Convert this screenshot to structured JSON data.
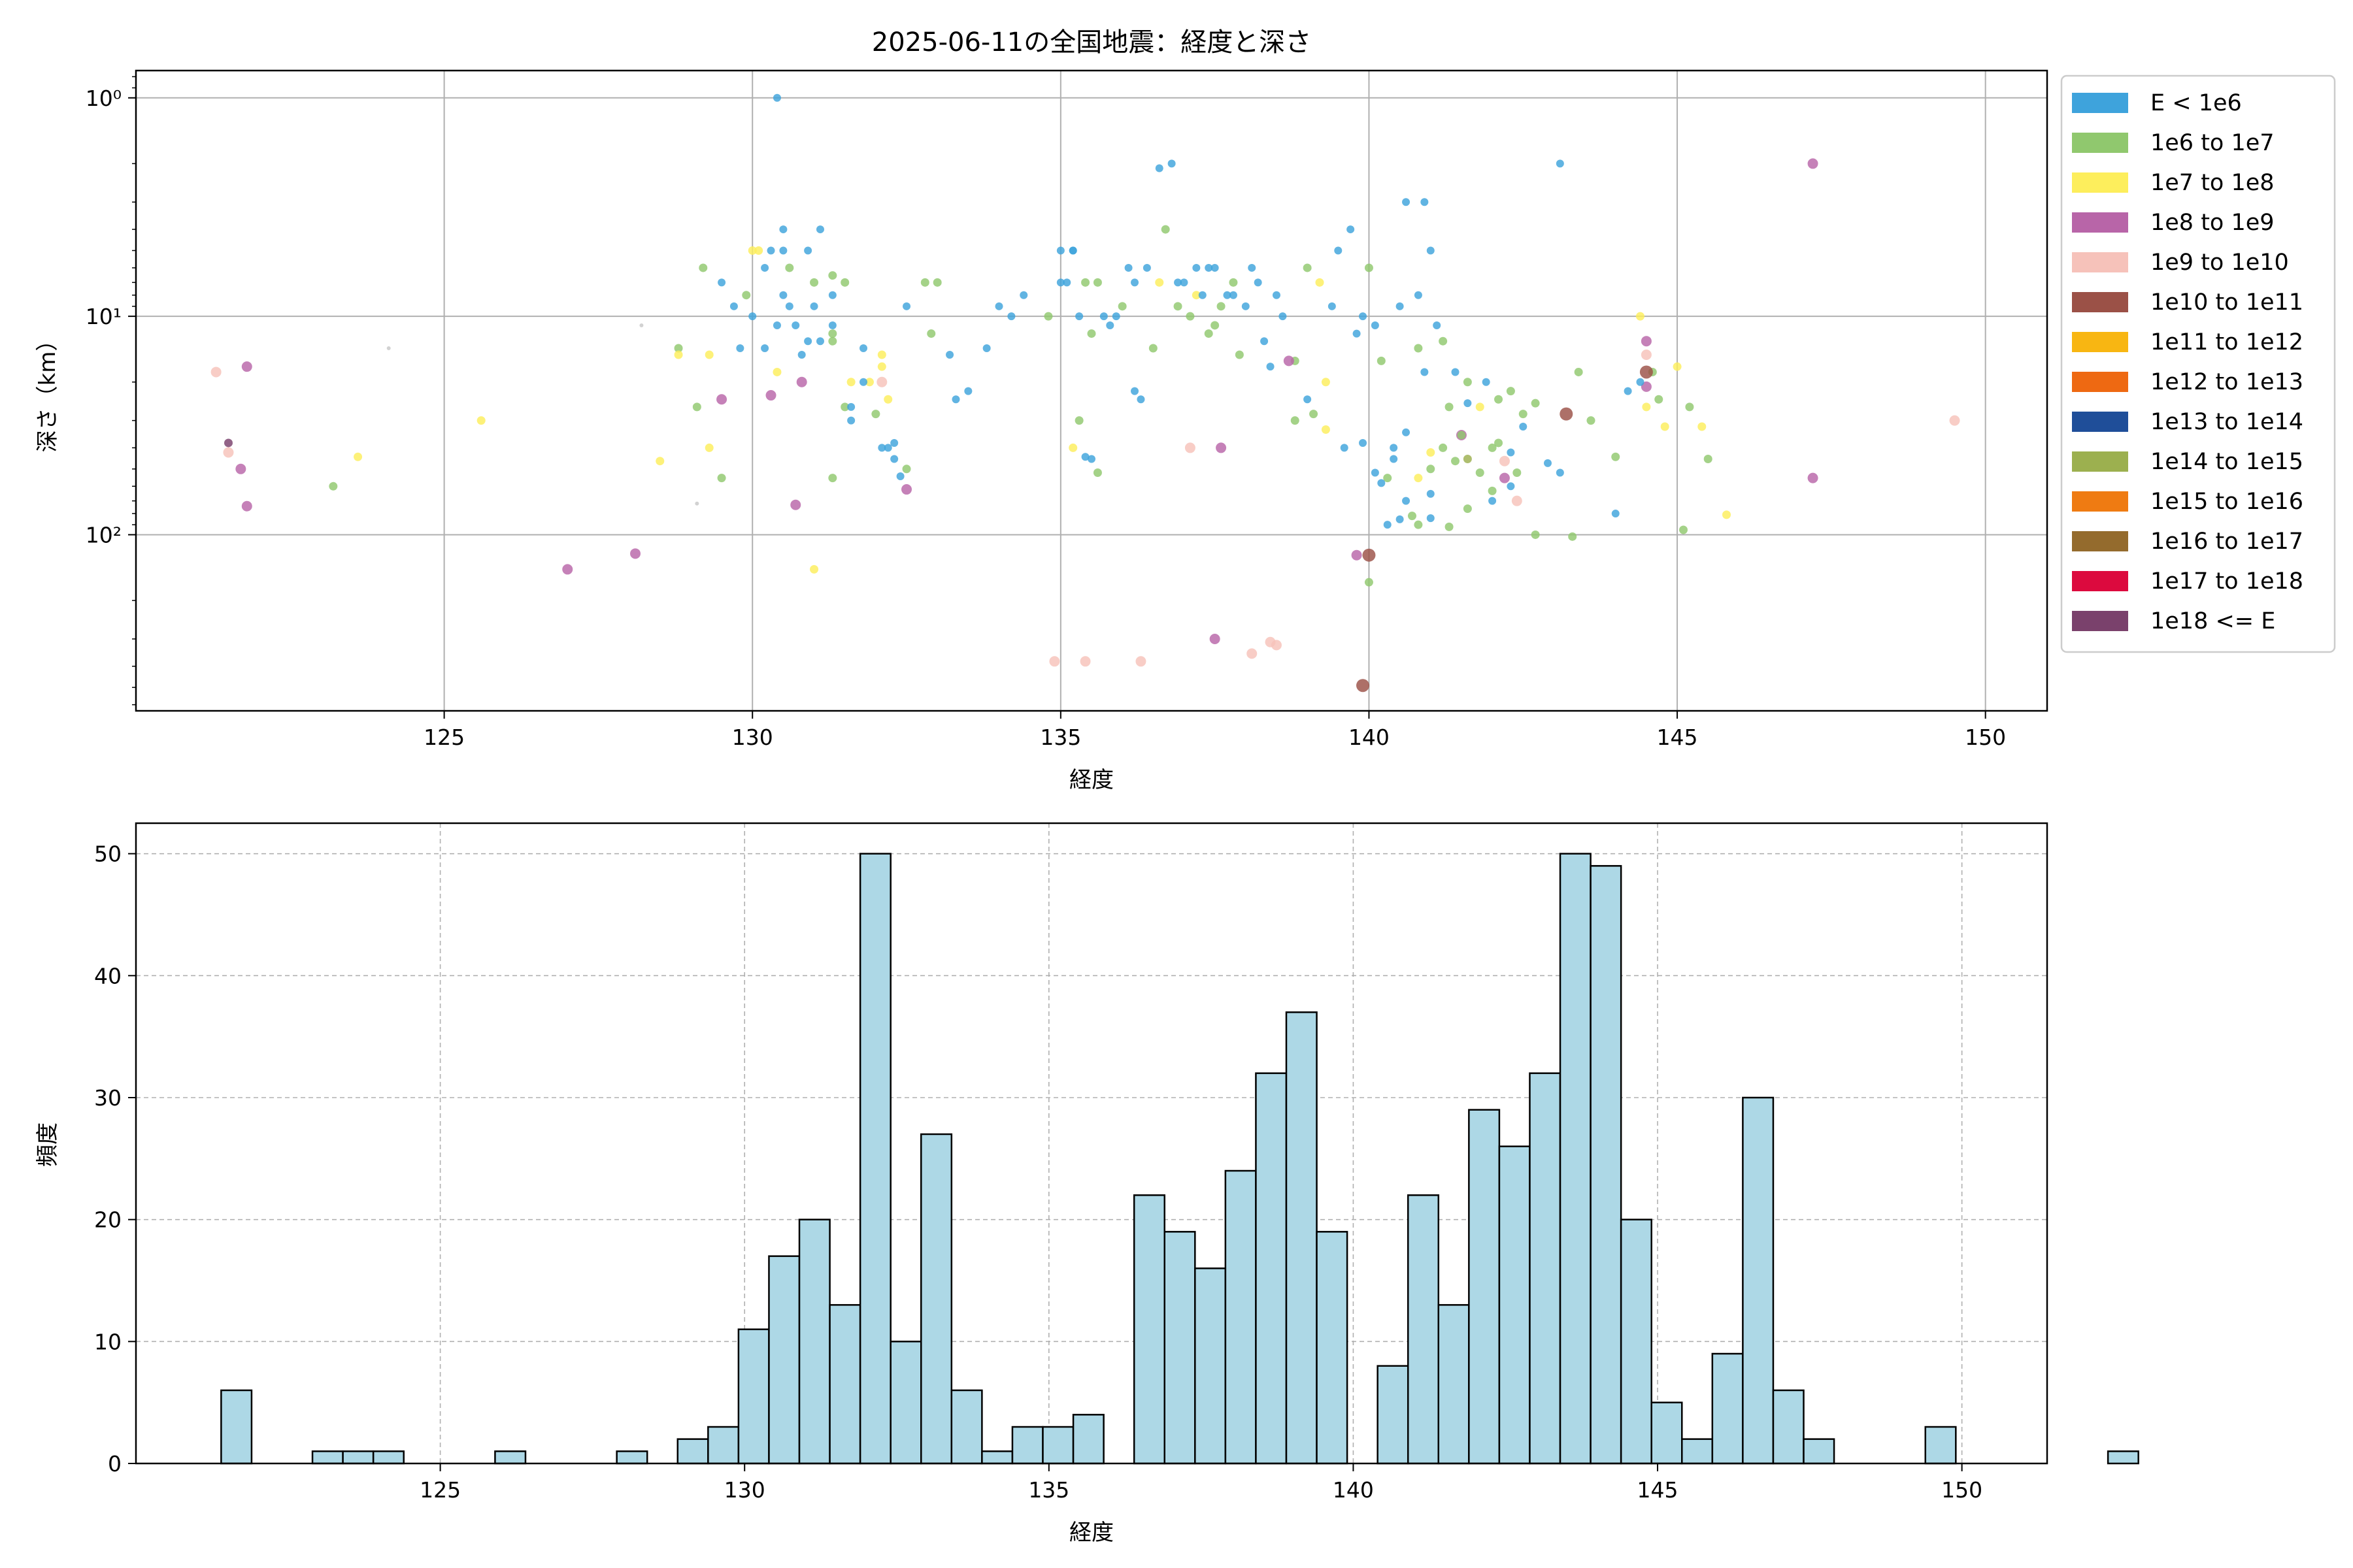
{
  "chart_data": [
    {
      "type": "scatter",
      "title": "2025-06-11の全国地震：経度と深さ",
      "xlabel": "経度",
      "ylabel": "深さ（km）",
      "xlim": [
        120.0,
        151.0
      ],
      "ylim": [
        640,
        0.75
      ],
      "yscale": "log-inverted",
      "xticks": [
        125,
        130,
        135,
        140,
        145,
        150
      ],
      "yticks": [
        {
          "value": 1,
          "label": "10⁰"
        },
        {
          "value": 10,
          "label": "10¹"
        },
        {
          "value": 100,
          "label": "10²"
        }
      ],
      "grid": true,
      "legend_position": "outside-right",
      "legend": [
        {
          "label": "E < 1e6",
          "color": "#3ea3dc"
        },
        {
          "label": "1e6 to 1e7",
          "color": "#90c86e"
        },
        {
          "label": "1e7 to 1e8",
          "color": "#fdee5c"
        },
        {
          "label": "1e8 to 1e9",
          "color": "#b865a8"
        },
        {
          "label": "1e9 to 1e10",
          "color": "#f6c2ba"
        },
        {
          "label": "1e10 to 1e11",
          "color": "#9b5147"
        },
        {
          "label": "1e11 to 1e12",
          "color": "#f8b612"
        },
        {
          "label": "1e12 to 1e13",
          "color": "#ee6912"
        },
        {
          "label": "1e13 to 1e14",
          "color": "#1f4e99"
        },
        {
          "label": "1e14 to 1e15",
          "color": "#9cb04f"
        },
        {
          "label": "1e15 to 1e16",
          "color": "#ef7b12"
        },
        {
          "label": "1e16 to 1e17",
          "color": "#946b2d"
        },
        {
          "label": "1e17 to 1e18",
          "color": "#dc0a3e"
        },
        {
          "label": "1e18 <= E",
          "color": "#7a416c"
        }
      ],
      "unclassified_color": "#c8c8c8",
      "points": [
        [
          121.5,
          38,
          13
        ],
        [
          121.3,
          18,
          4
        ],
        [
          121.5,
          42,
          4
        ],
        [
          121.7,
          50,
          3
        ],
        [
          121.8,
          17,
          3
        ],
        [
          121.8,
          74,
          3
        ],
        [
          123.2,
          60,
          1
        ],
        [
          123.6,
          44,
          2
        ],
        [
          124.1,
          14,
          -1
        ],
        [
          125.6,
          30,
          2
        ],
        [
          127.0,
          144,
          3
        ],
        [
          128.1,
          122,
          3
        ],
        [
          128.2,
          11,
          -1
        ],
        [
          128.5,
          46,
          2
        ],
        [
          128.8,
          14,
          1
        ],
        [
          128.8,
          15,
          2
        ],
        [
          129.1,
          26,
          1
        ],
        [
          129.1,
          72,
          -1
        ],
        [
          129.2,
          6,
          1
        ],
        [
          129.3,
          15,
          2
        ],
        [
          129.3,
          40,
          2
        ],
        [
          129.5,
          55,
          1
        ],
        [
          129.5,
          24,
          3
        ],
        [
          129.5,
          7,
          0
        ],
        [
          129.7,
          9,
          0
        ],
        [
          129.8,
          14,
          0
        ],
        [
          129.9,
          8,
          1
        ],
        [
          130.0,
          10,
          0
        ],
        [
          130.1,
          5,
          2
        ],
        [
          130.2,
          6,
          0
        ],
        [
          130.3,
          5,
          0
        ],
        [
          130.5,
          5,
          0
        ],
        [
          130.5,
          4,
          0
        ],
        [
          130.2,
          14,
          0
        ],
        [
          130.4,
          18,
          2
        ],
        [
          130.3,
          23,
          3
        ],
        [
          130.4,
          11,
          0
        ],
        [
          130.5,
          8,
          0
        ],
        [
          130.6,
          6,
          1
        ],
        [
          130.6,
          9,
          0
        ],
        [
          130.8,
          15,
          0
        ],
        [
          130.8,
          20,
          3
        ],
        [
          130.9,
          13,
          0
        ],
        [
          131.0,
          7,
          1
        ],
        [
          131.0,
          9,
          0
        ],
        [
          131.1,
          4,
          0
        ],
        [
          131.1,
          13,
          0
        ],
        [
          131.3,
          8,
          0
        ],
        [
          131.3,
          11,
          0
        ],
        [
          131.3,
          13,
          1
        ],
        [
          131.3,
          12,
          1
        ],
        [
          131.5,
          7,
          1
        ],
        [
          131.5,
          26,
          1
        ],
        [
          131.6,
          26,
          0
        ],
        [
          131.6,
          20,
          2
        ],
        [
          131.0,
          144,
          2
        ],
        [
          130.7,
          73,
          3
        ],
        [
          131.3,
          55,
          1
        ],
        [
          131.8,
          14,
          0
        ],
        [
          131.9,
          20,
          2
        ],
        [
          132.0,
          28,
          1
        ],
        [
          132.1,
          15,
          2
        ],
        [
          132.1,
          20,
          4
        ],
        [
          132.1,
          40,
          0
        ],
        [
          132.2,
          40,
          0
        ],
        [
          132.3,
          45,
          0
        ],
        [
          132.3,
          38,
          0
        ],
        [
          132.4,
          54,
          0
        ],
        [
          132.5,
          50,
          1
        ],
        [
          132.5,
          62,
          3
        ],
        [
          132.1,
          17,
          2
        ],
        [
          132.2,
          24,
          2
        ],
        [
          132.8,
          7,
          1
        ],
        [
          132.5,
          9,
          0
        ],
        [
          133.0,
          7,
          1
        ],
        [
          133.3,
          24,
          0
        ],
        [
          133.5,
          22,
          0
        ],
        [
          133.8,
          14,
          0
        ],
        [
          134.0,
          9,
          0
        ],
        [
          134.2,
          10,
          0
        ],
        [
          134.4,
          8,
          0
        ],
        [
          134.8,
          10,
          1
        ],
        [
          135.0,
          7,
          0
        ],
        [
          135.0,
          5,
          0
        ],
        [
          135.1,
          7,
          0
        ],
        [
          135.2,
          5,
          0
        ],
        [
          135.3,
          10,
          0
        ],
        [
          135.4,
          7,
          1
        ],
        [
          135.5,
          12,
          1
        ],
        [
          135.2,
          40,
          2
        ],
        [
          135.3,
          30,
          1
        ],
        [
          135.4,
          44,
          0
        ],
        [
          135.5,
          45,
          0
        ],
        [
          135.6,
          52,
          1
        ],
        [
          135.2,
          5,
          0
        ],
        [
          135.8,
          11,
          0
        ],
        [
          135.9,
          10,
          0
        ],
        [
          136.0,
          9,
          1
        ],
        [
          136.2,
          7,
          0
        ],
        [
          136.2,
          22,
          0
        ],
        [
          136.3,
          24,
          0
        ],
        [
          136.5,
          14,
          1
        ],
        [
          136.6,
          7,
          2
        ],
        [
          136.8,
          2,
          0
        ],
        [
          136.7,
          4,
          1
        ],
        [
          136.9,
          9,
          1
        ],
        [
          137.0,
          7,
          0
        ],
        [
          137.1,
          10,
          1
        ],
        [
          137.2,
          8,
          2
        ],
        [
          137.3,
          8,
          0
        ],
        [
          137.4,
          6,
          0
        ],
        [
          137.5,
          11,
          1
        ],
        [
          137.6,
          9,
          1
        ],
        [
          137.7,
          8,
          0
        ],
        [
          137.8,
          7,
          1
        ],
        [
          137.6,
          40,
          3
        ],
        [
          137.1,
          40,
          4
        ],
        [
          137.4,
          12,
          1
        ],
        [
          137.9,
          15,
          1
        ],
        [
          138.0,
          9,
          0
        ],
        [
          138.1,
          6,
          0
        ],
        [
          138.2,
          7,
          0
        ],
        [
          138.3,
          13,
          0
        ],
        [
          138.4,
          17,
          0
        ],
        [
          138.5,
          8,
          0
        ],
        [
          138.6,
          10,
          0
        ],
        [
          138.8,
          16,
          1
        ],
        [
          139.0,
          6,
          1
        ],
        [
          139.2,
          7,
          2
        ],
        [
          139.4,
          9,
          0
        ],
        [
          139.5,
          5,
          0
        ],
        [
          139.7,
          4,
          0
        ],
        [
          139.9,
          10,
          0
        ],
        [
          140.0,
          6,
          1
        ],
        [
          140.1,
          11,
          0
        ],
        [
          140.2,
          16,
          1
        ],
        [
          138.7,
          16,
          3
        ],
        [
          139.0,
          24,
          0
        ],
        [
          139.1,
          28,
          1
        ],
        [
          139.3,
          33,
          2
        ],
        [
          139.6,
          40,
          0
        ],
        [
          139.9,
          38,
          0
        ],
        [
          140.1,
          52,
          0
        ],
        [
          140.3,
          55,
          1
        ],
        [
          140.4,
          40,
          0
        ],
        [
          140.6,
          34,
          0
        ],
        [
          140.8,
          55,
          2
        ],
        [
          141.0,
          42,
          2
        ],
        [
          141.2,
          40,
          1
        ],
        [
          141.4,
          46,
          1
        ],
        [
          141.5,
          35,
          3
        ],
        [
          141.6,
          20,
          1
        ],
        [
          141.8,
          26,
          2
        ],
        [
          142.0,
          40,
          1
        ],
        [
          142.2,
          46,
          4
        ],
        [
          142.4,
          52,
          1
        ],
        [
          142.5,
          32,
          0
        ],
        [
          142.7,
          25,
          1
        ],
        [
          142.9,
          47,
          0
        ],
        [
          143.1,
          52,
          0
        ],
        [
          143.2,
          28,
          5
        ],
        [
          143.4,
          18,
          1
        ],
        [
          143.6,
          30,
          1
        ],
        [
          144.0,
          44,
          1
        ],
        [
          144.2,
          22,
          0
        ],
        [
          144.4,
          10,
          2
        ],
        [
          144.5,
          21,
          3
        ],
        [
          144.5,
          26,
          2
        ],
        [
          144.6,
          18,
          1
        ],
        [
          144.7,
          24,
          1
        ],
        [
          144.8,
          32,
          2
        ],
        [
          145.0,
          17,
          2
        ],
        [
          145.2,
          26,
          1
        ],
        [
          145.4,
          32,
          2
        ],
        [
          145.5,
          45,
          1
        ],
        [
          145.8,
          81,
          2
        ],
        [
          147.2,
          55,
          3
        ],
        [
          147.2,
          2,
          3
        ],
        [
          149.5,
          30,
          4
        ],
        [
          140.5,
          9,
          0
        ],
        [
          140.6,
          3,
          0
        ],
        [
          140.8,
          8,
          0
        ],
        [
          141.0,
          5,
          0
        ],
        [
          141.2,
          13,
          1
        ],
        [
          141.4,
          18,
          0
        ],
        [
          141.6,
          25,
          0
        ],
        [
          140.3,
          90,
          0
        ],
        [
          140.5,
          85,
          0
        ],
        [
          140.7,
          82,
          1
        ],
        [
          141.0,
          84,
          0
        ],
        [
          141.3,
          92,
          1
        ],
        [
          141.6,
          76,
          1
        ],
        [
          142.0,
          63,
          1
        ],
        [
          142.3,
          60,
          0
        ],
        [
          142.7,
          100,
          1
        ],
        [
          143.3,
          102,
          1
        ],
        [
          144.0,
          80,
          0
        ],
        [
          145.1,
          95,
          1
        ],
        [
          140.0,
          124,
          5
        ],
        [
          139.8,
          124,
          3
        ],
        [
          140.0,
          165,
          1
        ],
        [
          139.9,
          490,
          5
        ],
        [
          134.9,
          380,
          4
        ],
        [
          135.4,
          380,
          4
        ],
        [
          136.3,
          380,
          4
        ],
        [
          137.5,
          300,
          3
        ],
        [
          138.1,
          350,
          4
        ],
        [
          138.4,
          310,
          4
        ],
        [
          138.5,
          320,
          4
        ],
        [
          130.4,
          1,
          0
        ],
        [
          143.1,
          2,
          0
        ],
        [
          136.6,
          2.1,
          0
        ],
        [
          140.9,
          3,
          0
        ],
        [
          130.0,
          5,
          2
        ],
        [
          131.3,
          6.5,
          1
        ],
        [
          141.0,
          50,
          1
        ],
        [
          141.6,
          45,
          9
        ],
        [
          141.8,
          52,
          1
        ],
        [
          142.0,
          70,
          0
        ],
        [
          142.2,
          55,
          3
        ],
        [
          142.4,
          70,
          4
        ],
        [
          141.5,
          35,
          1
        ],
        [
          140.6,
          70,
          0
        ],
        [
          140.8,
          90,
          1
        ],
        [
          141.0,
          65,
          0
        ],
        [
          138.8,
          30,
          1
        ],
        [
          139.3,
          20,
          2
        ],
        [
          144.5,
          18,
          5
        ],
        [
          144.5,
          15,
          4
        ],
        [
          144.5,
          13,
          3
        ],
        [
          144.4,
          20,
          0
        ],
        [
          137.8,
          8,
          0
        ],
        [
          137.5,
          6,
          0
        ],
        [
          137.2,
          6,
          0
        ],
        [
          136.9,
          7,
          0
        ],
        [
          136.4,
          6,
          0
        ],
        [
          136.1,
          6,
          0
        ],
        [
          135.7,
          10,
          0
        ],
        [
          135.6,
          7,
          1
        ],
        [
          133.2,
          15,
          0
        ],
        [
          132.9,
          12,
          1
        ],
        [
          130.7,
          11,
          0
        ],
        [
          130.9,
          5,
          0
        ],
        [
          131.6,
          30,
          0
        ],
        [
          131.8,
          20,
          0
        ],
        [
          141.9,
          20,
          0
        ],
        [
          142.1,
          24,
          1
        ],
        [
          142.3,
          22,
          1
        ],
        [
          142.5,
          28,
          1
        ],
        [
          142.3,
          42,
          0
        ],
        [
          142.1,
          38,
          1
        ],
        [
          140.8,
          14,
          1
        ],
        [
          140.9,
          18,
          0
        ],
        [
          141.1,
          11,
          0
        ],
        [
          141.3,
          26,
          1
        ],
        [
          140.2,
          58,
          0
        ],
        [
          140.4,
          45,
          0
        ],
        [
          139.8,
          12,
          0
        ]
      ]
    },
    {
      "type": "bar",
      "title": "",
      "xlabel": "経度",
      "ylabel": "頻度",
      "xlim": [
        120.0,
        151.4
      ],
      "ylim": [
        0,
        52.5
      ],
      "xticks": [
        125,
        130,
        135,
        140,
        145,
        150
      ],
      "yticks": [
        0,
        10,
        20,
        30,
        40,
        50
      ],
      "grid": true,
      "bin_start": 121.4,
      "bin_width": 0.5,
      "values": [
        6,
        0,
        0,
        1,
        1,
        1,
        0,
        0,
        0,
        1,
        0,
        0,
        0,
        1,
        0,
        2,
        3,
        11,
        17,
        20,
        13,
        50,
        10,
        27,
        6,
        1,
        3,
        3,
        4,
        0,
        22,
        19,
        16,
        24,
        32,
        37,
        19,
        0,
        8,
        22,
        13,
        29,
        26,
        32,
        50,
        49,
        20,
        5,
        2,
        9,
        30,
        6,
        2,
        0,
        0,
        0,
        3,
        0,
        0,
        0,
        0,
        0,
        1
      ]
    }
  ]
}
